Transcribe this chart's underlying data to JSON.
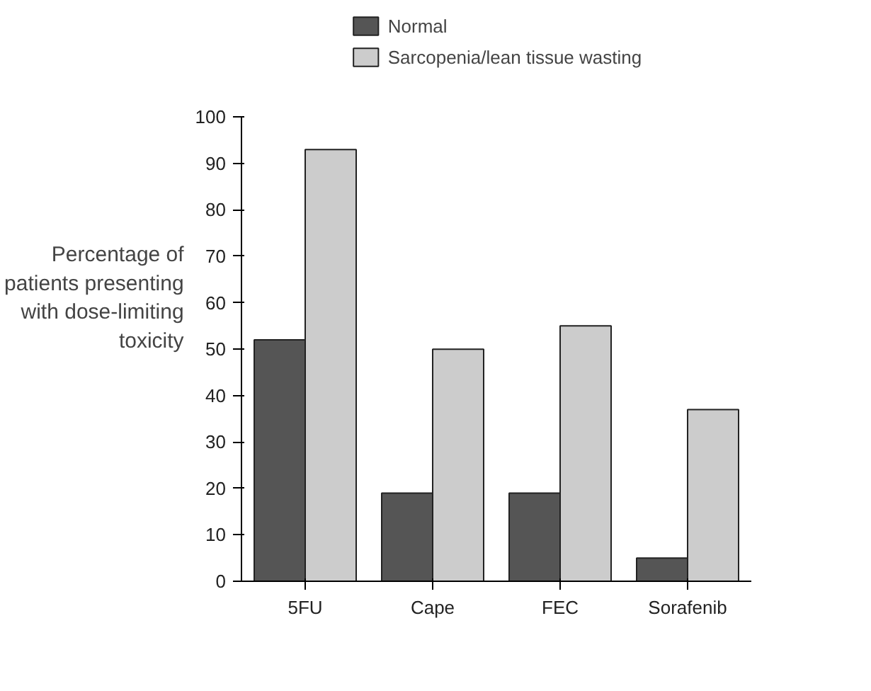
{
  "chart_data": {
    "type": "bar",
    "ylabel": "Percentage of patients presenting with dose-limiting toxicity",
    "categories": [
      "5FU",
      "Cape",
      "FEC",
      "Sorafenib"
    ],
    "series": [
      {
        "name": "Normal",
        "color": "#555555",
        "values": [
          52,
          19,
          19,
          5
        ]
      },
      {
        "name": "Sarcopenia/lean tissue wasting",
        "color": "#cccccc",
        "values": [
          93,
          50,
          55,
          37
        ]
      }
    ],
    "ylim": [
      0,
      100
    ],
    "yticks": [
      0,
      10,
      20,
      30,
      40,
      50,
      60,
      70,
      80,
      90,
      100
    ],
    "grid": false,
    "legend": "top"
  }
}
